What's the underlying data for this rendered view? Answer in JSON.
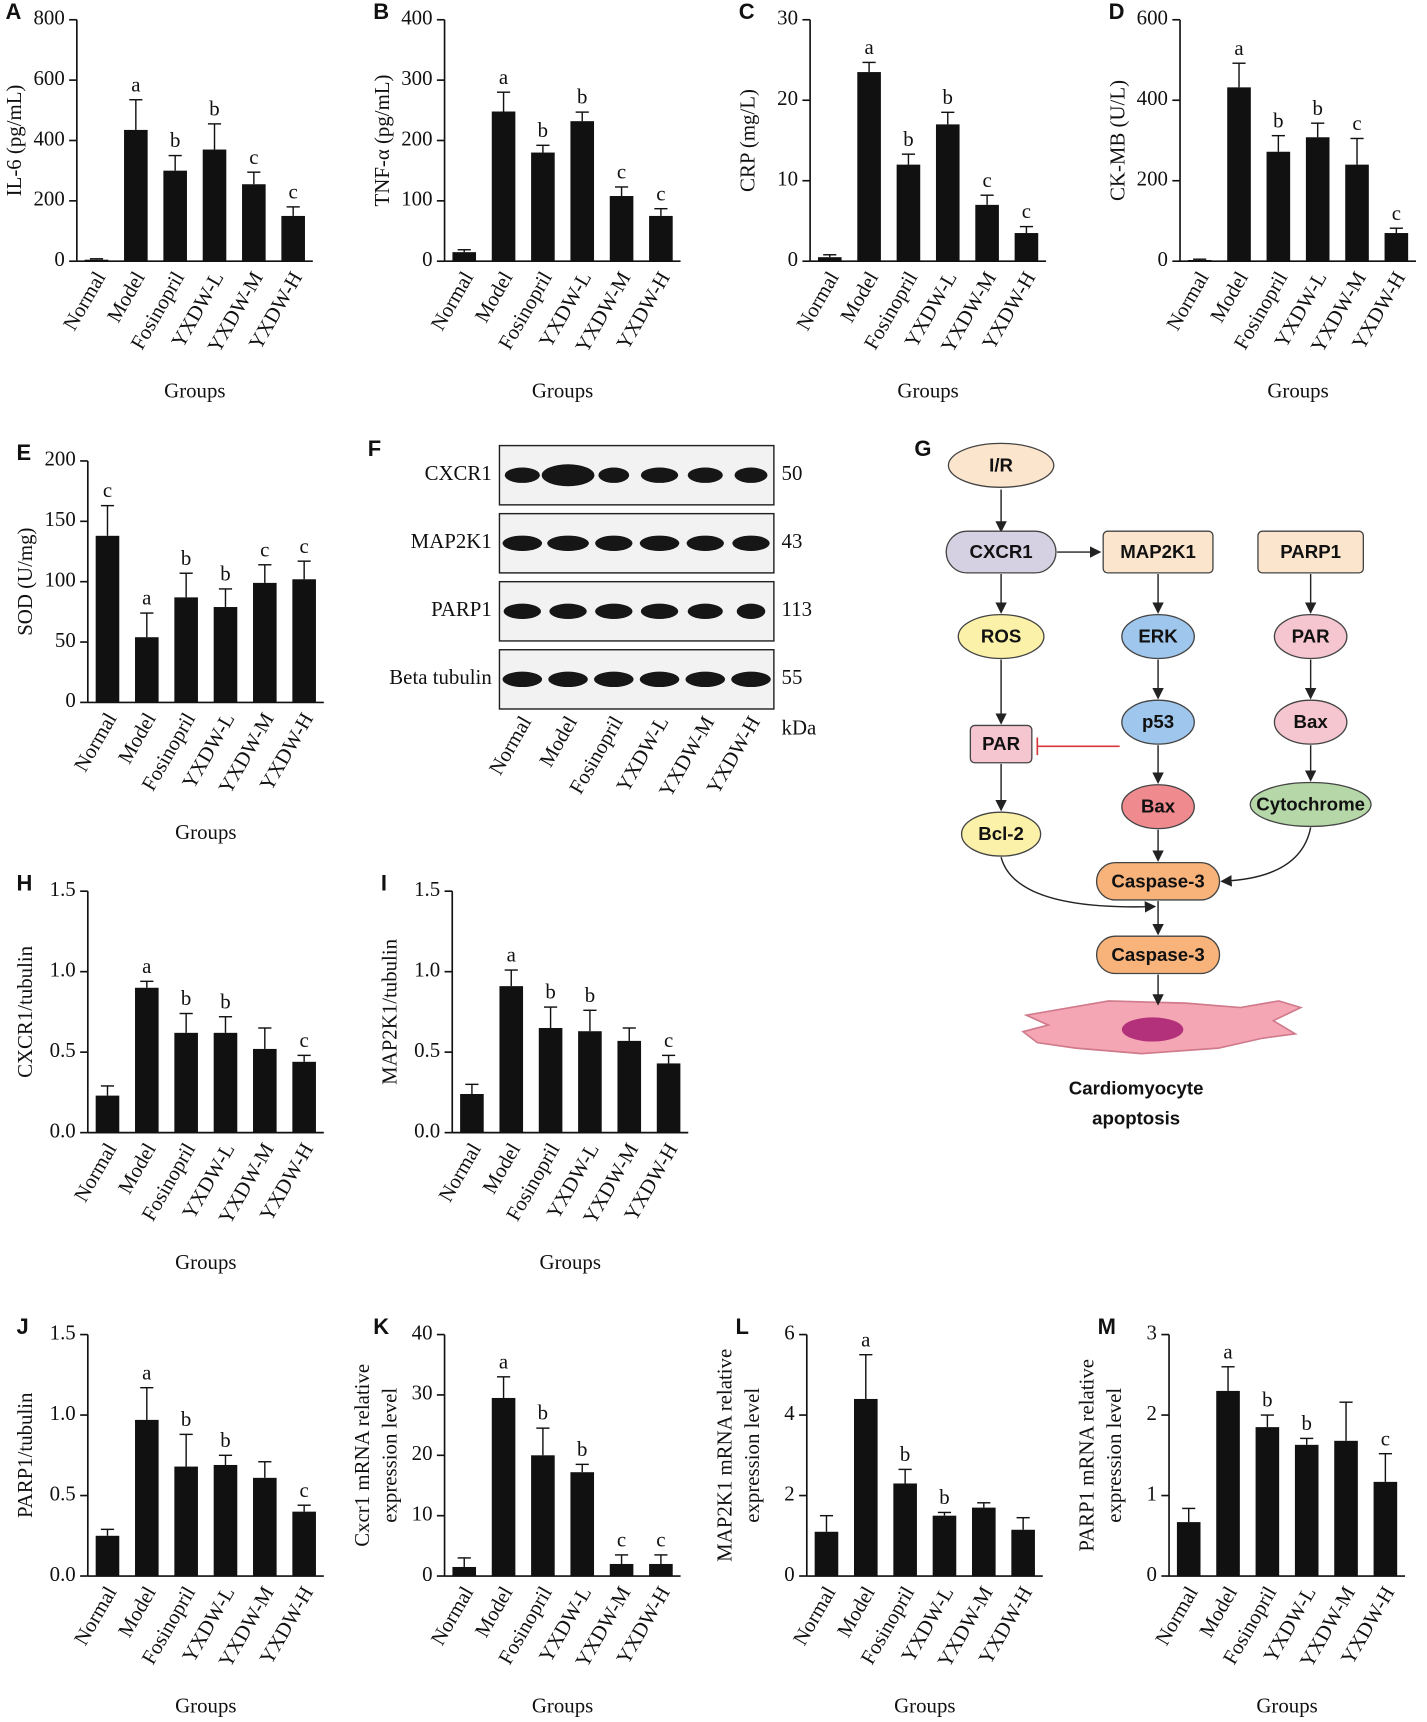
{
  "chart_data": [
    {
      "type": "bar",
      "panel": "A",
      "y_label": [
        "IL-6 (pg/mL)"
      ],
      "x_label": "Groups",
      "categories": [
        "Normal",
        "Model",
        "Fosinopril",
        "YXDW-L",
        "YXDW-M",
        "YXDW-H"
      ],
      "values": [
        5,
        435,
        300,
        370,
        255,
        150
      ],
      "errors": [
        3,
        100,
        50,
        85,
        40,
        30
      ],
      "significance": [
        null,
        "a",
        "b",
        "b",
        "c",
        "c"
      ],
      "color": "#111111",
      "ylim": [
        0,
        800
      ],
      "yticks": [
        0,
        200,
        400,
        600,
        800
      ]
    },
    {
      "type": "bar",
      "panel": "B",
      "y_label": [
        "TNF-α (pg/mL)"
      ],
      "x_label": "Groups",
      "categories": [
        "Normal",
        "Model",
        "Fosinopril",
        "YXDW-L",
        "YXDW-M",
        "YXDW-H"
      ],
      "values": [
        15,
        248,
        180,
        232,
        108,
        75
      ],
      "errors": [
        4,
        32,
        12,
        15,
        15,
        12
      ],
      "significance": [
        null,
        "a",
        "b",
        "b",
        "c",
        "c"
      ],
      "color": "#111111",
      "ylim": [
        0,
        400
      ],
      "yticks": [
        0,
        100,
        200,
        300,
        400
      ]
    },
    {
      "type": "bar",
      "panel": "C",
      "y_label": [
        "CRP (mg/L)"
      ],
      "x_label": "Groups",
      "categories": [
        "Normal",
        "Model",
        "Fosinopril",
        "YXDW-L",
        "YXDW-M",
        "YXDW-H"
      ],
      "values": [
        0.5,
        23.5,
        12,
        17,
        7,
        3.5
      ],
      "errors": [
        0.3,
        1.2,
        1.3,
        1.5,
        1.2,
        0.8
      ],
      "significance": [
        null,
        "a",
        "b",
        "b",
        "c",
        "c"
      ],
      "color": "#111111",
      "ylim": [
        0,
        30
      ],
      "yticks": [
        0,
        10,
        20,
        30
      ]
    },
    {
      "type": "bar",
      "panel": "D",
      "y_label": [
        "CK-MB (U/L)"
      ],
      "x_label": "Groups",
      "categories": [
        "Normal",
        "Model",
        "Fosinopril",
        "YXDW-L",
        "YXDW-M",
        "YXDW-H"
      ],
      "values": [
        3,
        432,
        272,
        308,
        240,
        70
      ],
      "errors": [
        2,
        60,
        40,
        35,
        65,
        12
      ],
      "significance": [
        null,
        "a",
        "b",
        "b",
        "c",
        "c"
      ],
      "color": "#111111",
      "ylim": [
        0,
        600
      ],
      "yticks": [
        0,
        200,
        400,
        600
      ]
    },
    {
      "type": "bar",
      "panel": "E",
      "y_label": [
        "SOD (U/mg)"
      ],
      "x_label": "Groups",
      "categories": [
        "Normal",
        "Model",
        "Fosinopril",
        "YXDW-L",
        "YXDW-M",
        "YXDW-H"
      ],
      "values": [
        138,
        54,
        87,
        79,
        99,
        102
      ],
      "errors": [
        25,
        20,
        20,
        15,
        15,
        15
      ],
      "significance": [
        "c",
        "a",
        "b",
        "b",
        "c",
        "c"
      ],
      "color": "#111111",
      "ylim": [
        0,
        200
      ],
      "yticks": [
        0,
        50,
        100,
        150,
        200
      ]
    },
    {
      "type": "bar",
      "panel": "H",
      "y_label": [
        "CXCR1/tubulin"
      ],
      "x_label": "Groups",
      "categories": [
        "Normal",
        "Model",
        "Fosinopril",
        "YXDW-L",
        "YXDW-M",
        "YXDW-H"
      ],
      "values": [
        0.23,
        0.9,
        0.62,
        0.62,
        0.52,
        0.44
      ],
      "errors": [
        0.06,
        0.04,
        0.12,
        0.1,
        0.13,
        0.04
      ],
      "significance": [
        null,
        "a",
        "b",
        "b",
        null,
        "c"
      ],
      "color": "#111111",
      "ylim": [
        0,
        1.5
      ],
      "yticks": [
        {
          "value": 0,
          "label": "0.0"
        },
        0.5,
        {
          "value": 1,
          "label": "1.0"
        },
        1.5
      ]
    },
    {
      "type": "bar",
      "panel": "I",
      "y_label": [
        "MAP2K1/tubulin"
      ],
      "x_label": "Groups",
      "categories": [
        "Normal",
        "Model",
        "Fosinopril",
        "YXDW-L",
        "YXDW-M",
        "YXDW-H"
      ],
      "values": [
        0.24,
        0.91,
        0.65,
        0.63,
        0.57,
        0.43
      ],
      "errors": [
        0.06,
        0.1,
        0.13,
        0.13,
        0.08,
        0.05
      ],
      "significance": [
        null,
        "a",
        "b",
        "b",
        null,
        "c"
      ],
      "color": "#111111",
      "ylim": [
        0,
        1.5
      ],
      "yticks": [
        {
          "value": 0,
          "label": "0.0"
        },
        0.5,
        {
          "value": 1,
          "label": "1.0"
        },
        1.5
      ]
    },
    {
      "type": "bar",
      "panel": "J",
      "y_label": [
        "PARP1/tubulin"
      ],
      "x_label": "Groups",
      "categories": [
        "Normal",
        "Model",
        "Fosinopril",
        "YXDW-L",
        "YXDW-M",
        "YXDW-H"
      ],
      "values": [
        0.25,
        0.97,
        0.68,
        0.69,
        0.61,
        0.4
      ],
      "errors": [
        0.04,
        0.2,
        0.2,
        0.06,
        0.1,
        0.04
      ],
      "significance": [
        null,
        "a",
        "b",
        "b",
        null,
        "c"
      ],
      "color": "#111111",
      "ylim": [
        0,
        1.5
      ],
      "yticks": [
        {
          "value": 0,
          "label": "0.0"
        },
        0.5,
        {
          "value": 1,
          "label": "1.0"
        },
        1.5
      ]
    },
    {
      "type": "bar",
      "panel": "K",
      "y_label": [
        "Cxcr1 mRNA relative",
        "expression level"
      ],
      "x_label": "Groups",
      "categories": [
        "Normal",
        "Model",
        "Fosinopril",
        "YXDW-L",
        "YXDW-M",
        "YXDW-H"
      ],
      "values": [
        1.5,
        29.5,
        20,
        17.2,
        2,
        2
      ],
      "errors": [
        1.5,
        3.5,
        4.5,
        1.3,
        1.5,
        1.5
      ],
      "significance": [
        null,
        "a",
        "b",
        "b",
        "c",
        "c"
      ],
      "color": "#111111",
      "ylim": [
        0,
        40
      ],
      "yticks": [
        0,
        10,
        20,
        30,
        40
      ]
    },
    {
      "type": "bar",
      "panel": "L",
      "y_label": [
        "MAP2K1 mRNA relative",
        "expression level"
      ],
      "x_label": "Groups",
      "categories": [
        "Normal",
        "Model",
        "Fosinopril",
        "YXDW-L",
        "YXDW-M",
        "YXDW-H"
      ],
      "values": [
        1.1,
        4.4,
        2.3,
        1.5,
        1.7,
        1.15
      ],
      "errors": [
        0.4,
        1.1,
        0.35,
        0.08,
        0.12,
        0.3
      ],
      "significance": [
        null,
        "a",
        "b",
        "b",
        null,
        null
      ],
      "color": "#111111",
      "ylim": [
        0,
        6
      ],
      "yticks": [
        0,
        2,
        4,
        6
      ]
    },
    {
      "type": "bar",
      "panel": "M",
      "y_label": [
        "PARP1 mRNA relative",
        "expression level"
      ],
      "x_label": "Groups",
      "categories": [
        "Normal",
        "Model",
        "Fosinopril",
        "YXDW-L",
        "YXDW-M",
        "YXDW-H"
      ],
      "values": [
        0.67,
        2.3,
        1.85,
        1.63,
        1.68,
        1.17
      ],
      "errors": [
        0.17,
        0.3,
        0.15,
        0.08,
        0.48,
        0.35
      ],
      "significance": [
        null,
        "a",
        "b",
        "b",
        null,
        "c"
      ],
      "color": "#111111",
      "ylim": [
        0,
        3
      ],
      "yticks": [
        0,
        1,
        2,
        3
      ]
    }
  ],
  "blot": {
    "panel": "F",
    "proteins": [
      "CXCR1",
      "MAP2K1",
      "PARP1",
      "Beta tubulin"
    ],
    "kda": [
      50,
      43,
      113,
      55
    ],
    "unit": "kDa",
    "lanes": [
      "Normal",
      "Model",
      "Fosinopril",
      "YXDW-L",
      "YXDW-M",
      "YXDW-H"
    ]
  },
  "pathway": {
    "panel": "G",
    "nodes": [
      "I/R",
      "CXCR1",
      "MAP2K1",
      "PARP1",
      "ROS",
      "ERK",
      "PAR",
      "p53",
      "Bax",
      "PAR",
      "Bax",
      "Cytochrome",
      "Bcl-2",
      "Caspase-3",
      "Caspase-3"
    ],
    "outcome": [
      "Cardiomyocyte",
      "apoptosis"
    ]
  }
}
